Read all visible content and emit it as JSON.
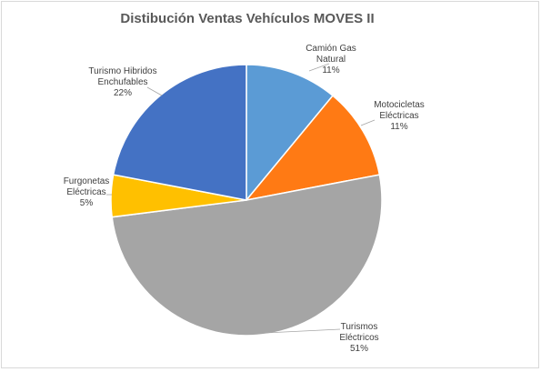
{
  "chart_data": {
    "type": "pie",
    "title": "Distibución Ventas Vehículos MOVES II",
    "slices": [
      {
        "label_lines": [
          "Camión Gas",
          "Natural"
        ],
        "percent_label": "11%",
        "value": 11,
        "color": "#5b9bd5"
      },
      {
        "label_lines": [
          "Motocicletas",
          "Eléctricas"
        ],
        "percent_label": "11%",
        "value": 11,
        "color": "#ff7a14"
      },
      {
        "label_lines": [
          "Turismos",
          "Eléctricos"
        ],
        "percent_label": "51%",
        "value": 51,
        "color": "#a5a5a5"
      },
      {
        "label_lines": [
          "Furgonetas",
          "Eléctricas"
        ],
        "percent_label": "5%",
        "value": 5,
        "color": "#ffc000"
      },
      {
        "label_lines": [
          "Turismo Hibridos",
          "Enchufables"
        ],
        "percent_label": "22%",
        "value": 22,
        "color": "#4472c4"
      }
    ],
    "legend": "none",
    "data_labels": "outside-with-leader-lines"
  }
}
